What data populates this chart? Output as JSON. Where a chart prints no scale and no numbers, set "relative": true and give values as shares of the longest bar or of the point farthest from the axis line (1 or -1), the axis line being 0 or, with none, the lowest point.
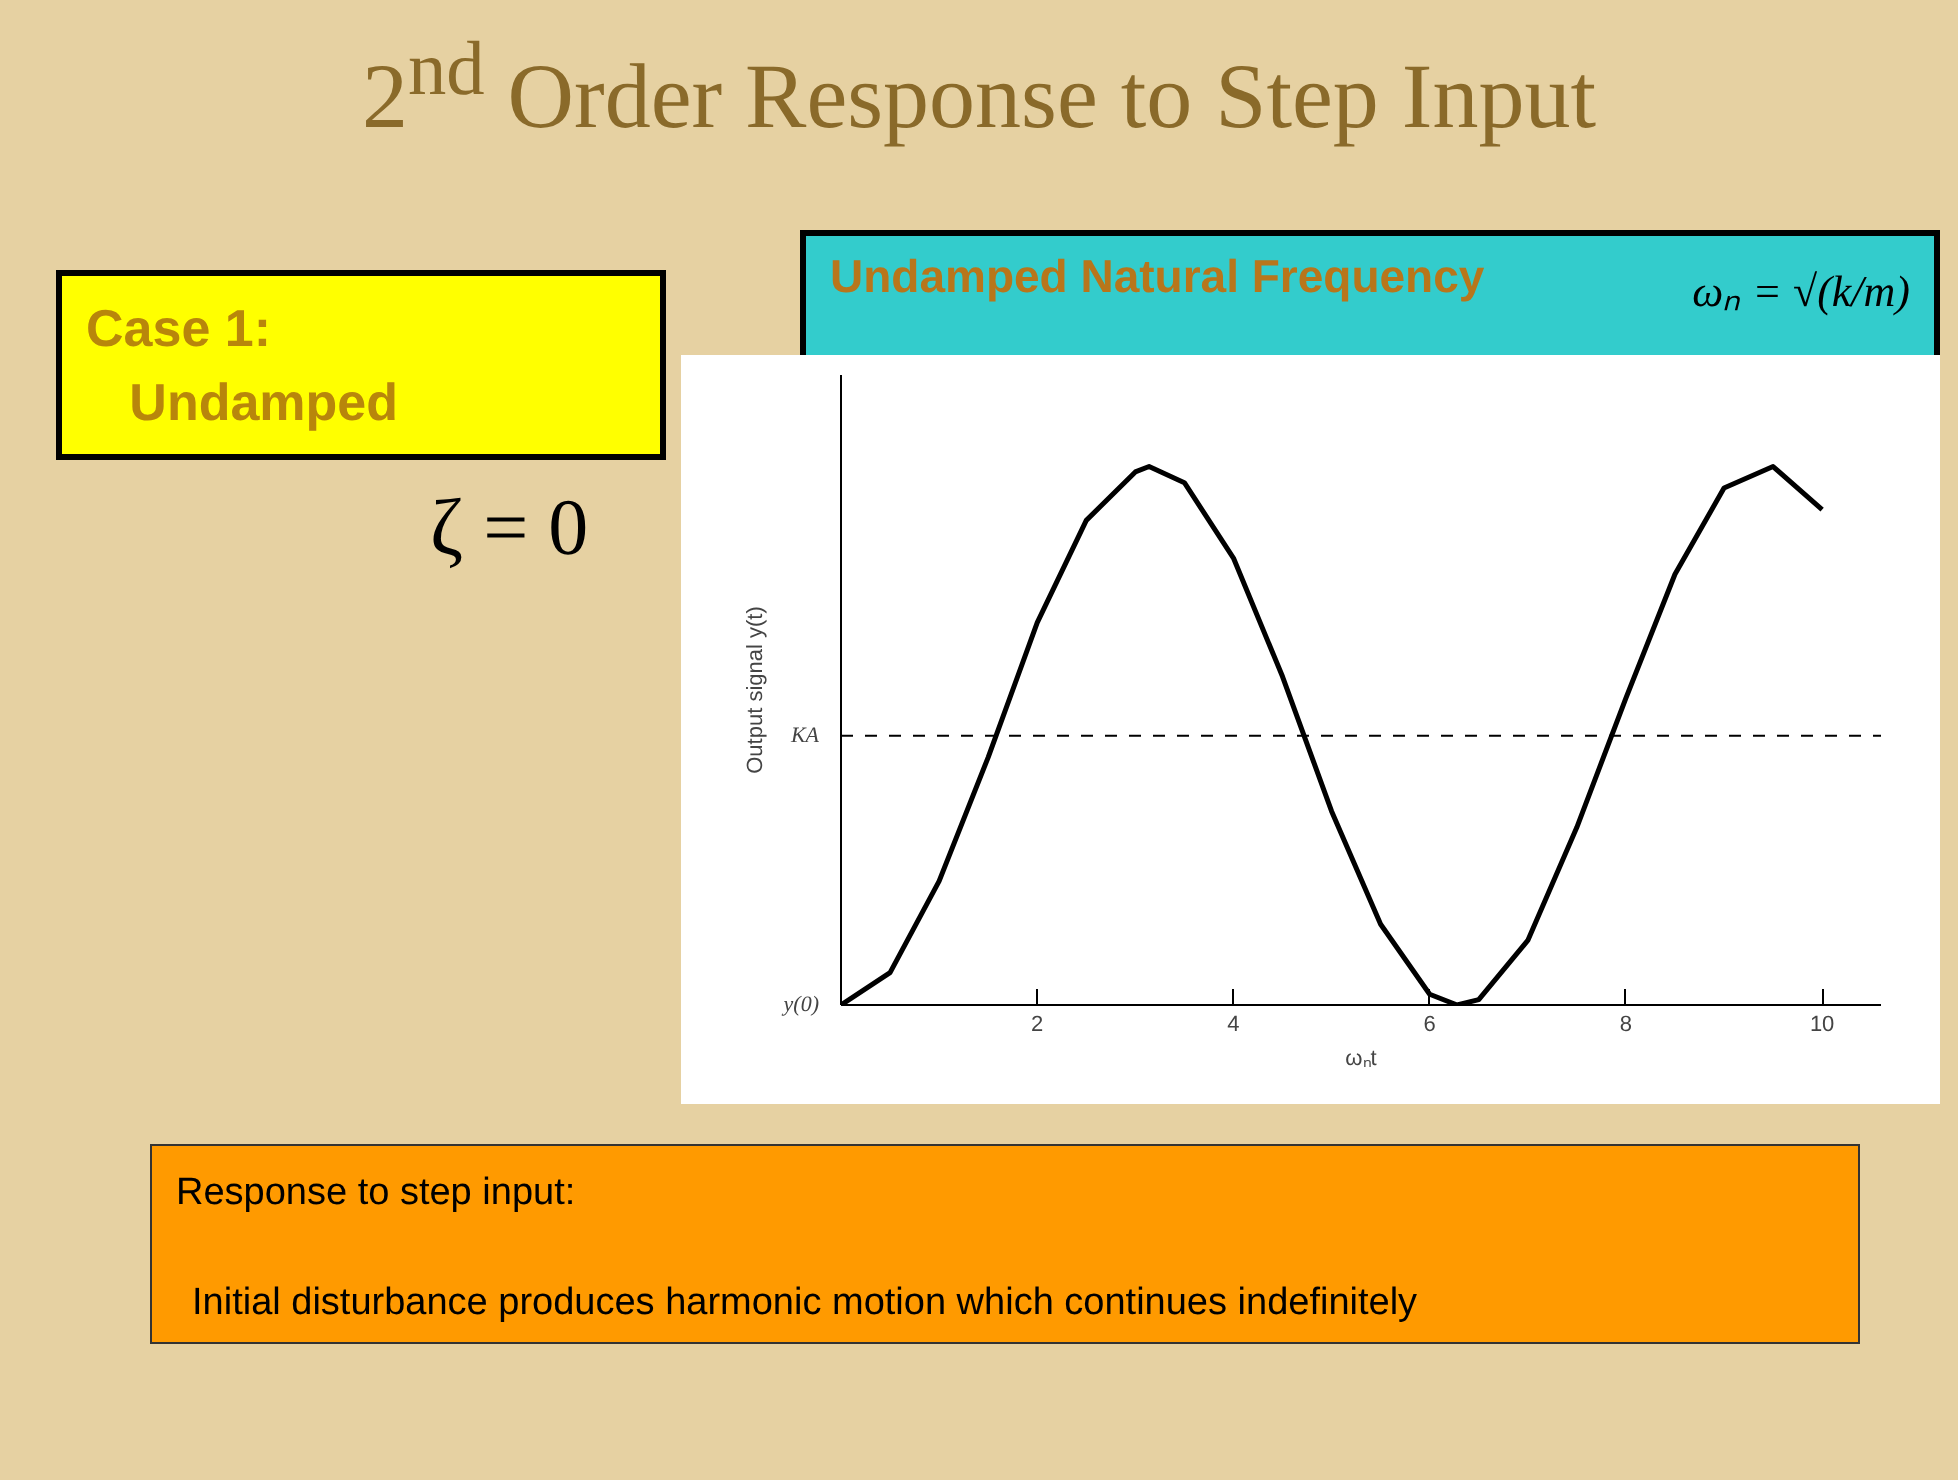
{
  "chart_data": {
    "type": "line",
    "title": "2$^{nd}$ Order Response to Step Input",
    "xlabel": "ωₙt",
    "ylabel": "Output signal y(t)",
    "relative": true,
    "x": [
      0,
      0.5,
      1,
      1.5,
      2,
      2.5,
      3,
      3.14,
      3.5,
      4,
      4.5,
      5,
      5.5,
      6,
      6.28,
      6.5,
      7,
      7.5,
      8,
      8.5,
      9,
      9.5,
      10
    ],
    "series": [
      {
        "color": "#000000",
        "values": [
          0,
          0.06,
          0.23,
          0.46,
          0.71,
          0.9,
          0.99,
          1.0,
          0.97,
          0.83,
          0.61,
          0.36,
          0.15,
          0.02,
          0,
          0.01,
          0.12,
          0.33,
          0.57,
          0.8,
          0.96,
          1.0,
          0.92
        ]
      }
    ],
    "xlim": [
      0,
      10.6
    ],
    "xticks": [
      2,
      4,
      6,
      8,
      10
    ],
    "grid": false,
    "marker": "none",
    "line_style": "solid",
    "ref_lines": [
      {
        "axis": "y",
        "value": 0.5,
        "label": "KA",
        "line_style": "dashed",
        "color": "#000000"
      }
    ],
    "annotations": [
      "Case 1:\n   Undamped",
      "ζ = 0",
      "Undamped Natural Frequency",
      "ωₙ = √(k/m)",
      "Response to step input:",
      "Initial disturbance produces harmonic motion which continues indefinitely",
      {
        "text": "y(0)",
        "x": 0,
        "y": 0
      }
    ]
  }
}
